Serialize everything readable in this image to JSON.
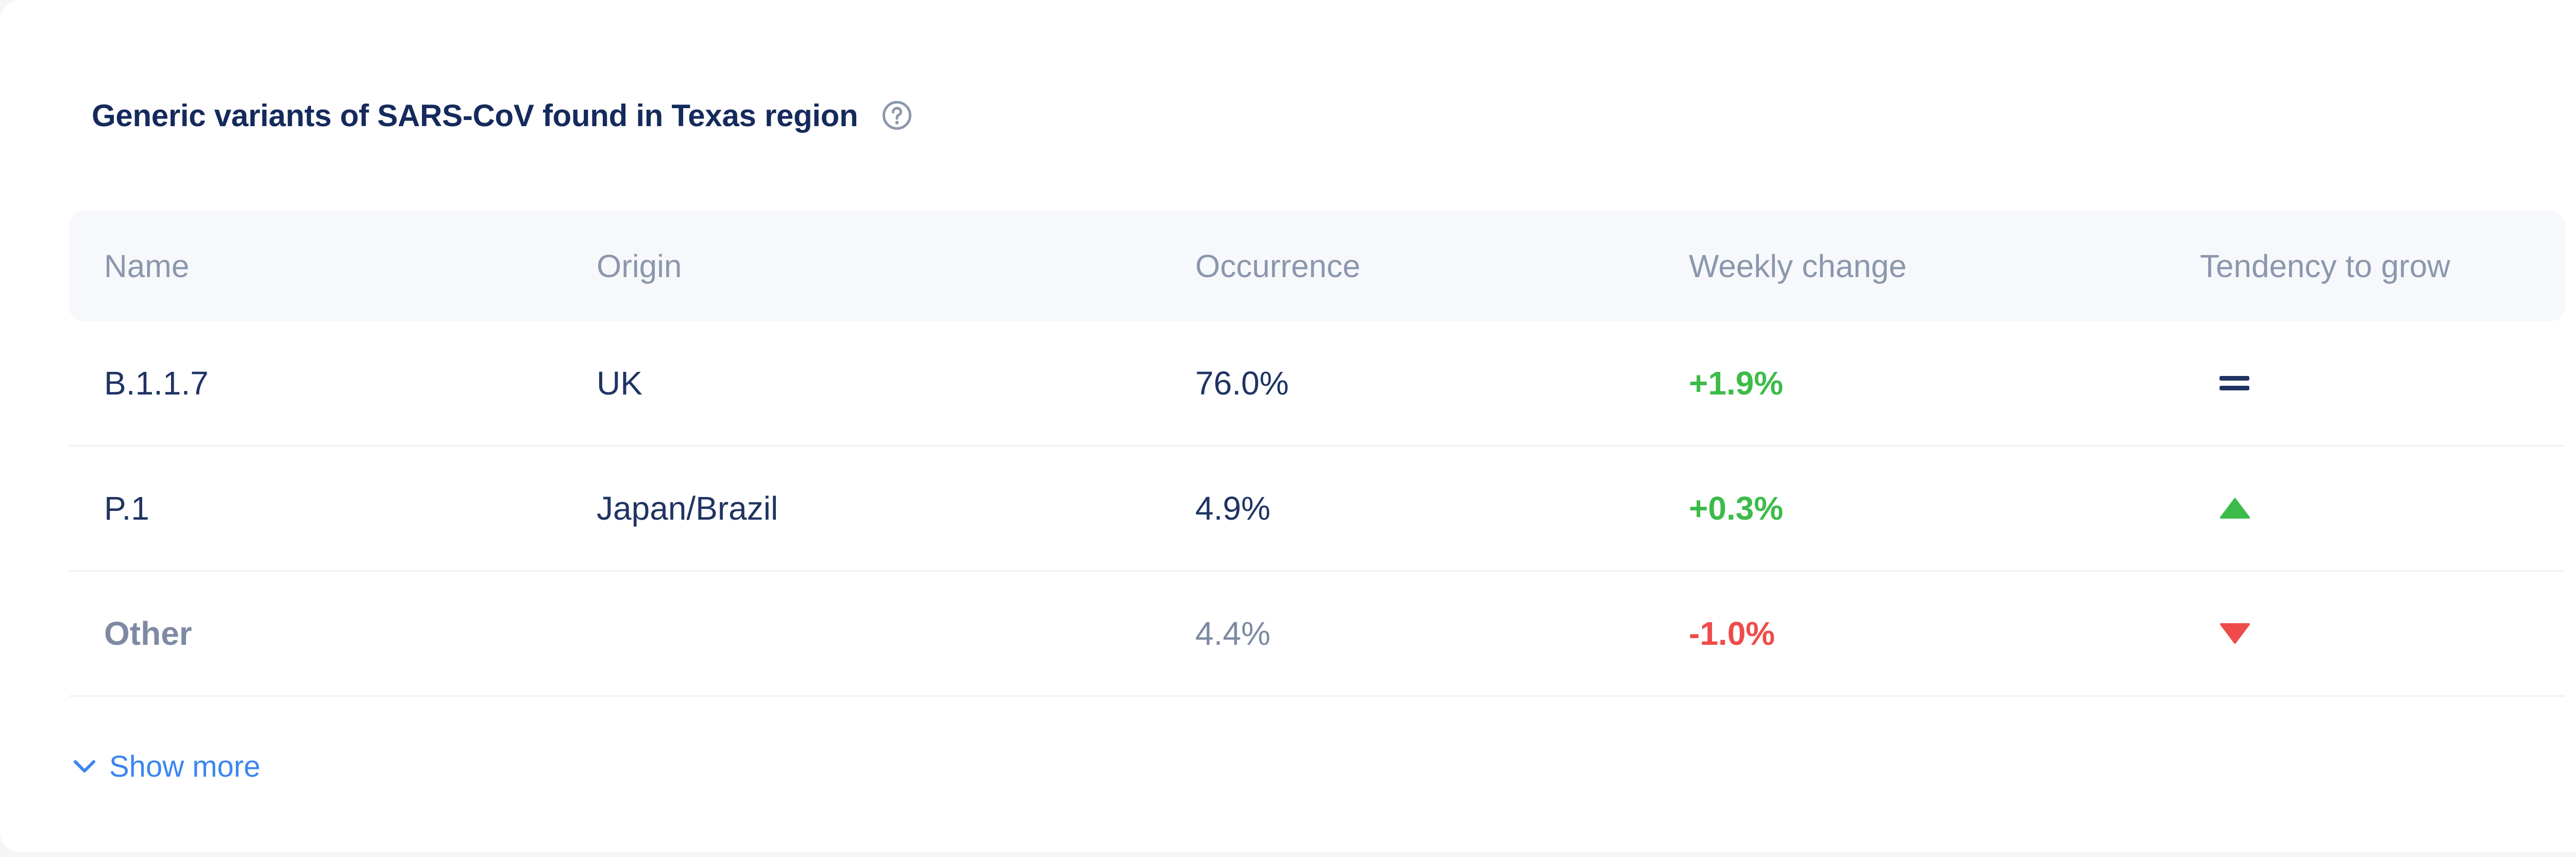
{
  "title": "Generic variants of SARS-CoV found in Texas region",
  "columns": {
    "name": "Name",
    "origin": "Origin",
    "occurrence": "Occurrence",
    "weekly_change": "Weekly change",
    "tendency": "Tendency to grow"
  },
  "rows": [
    {
      "name": "B.1.1.7",
      "origin": "UK",
      "occurrence": "76.0%",
      "weekly_change": "+1.9%",
      "tendency_icon": "equals-icon"
    },
    {
      "name": "P.1",
      "origin": "Japan/Brazil",
      "occurrence": "4.9%",
      "weekly_change": "+0.3%",
      "tendency_icon": "triangle-up-icon"
    },
    {
      "name": "Other",
      "origin": "",
      "occurrence": "4.4%",
      "weekly_change": "-1.0%",
      "tendency_icon": "triangle-down-icon"
    }
  ],
  "show_more_label": "Show more",
  "colors": {
    "title": "#152a5c",
    "positive": "#3dbb4a",
    "negative": "#ef4b4b",
    "link": "#3b86f0",
    "header_bg": "#f6f8fb"
  }
}
